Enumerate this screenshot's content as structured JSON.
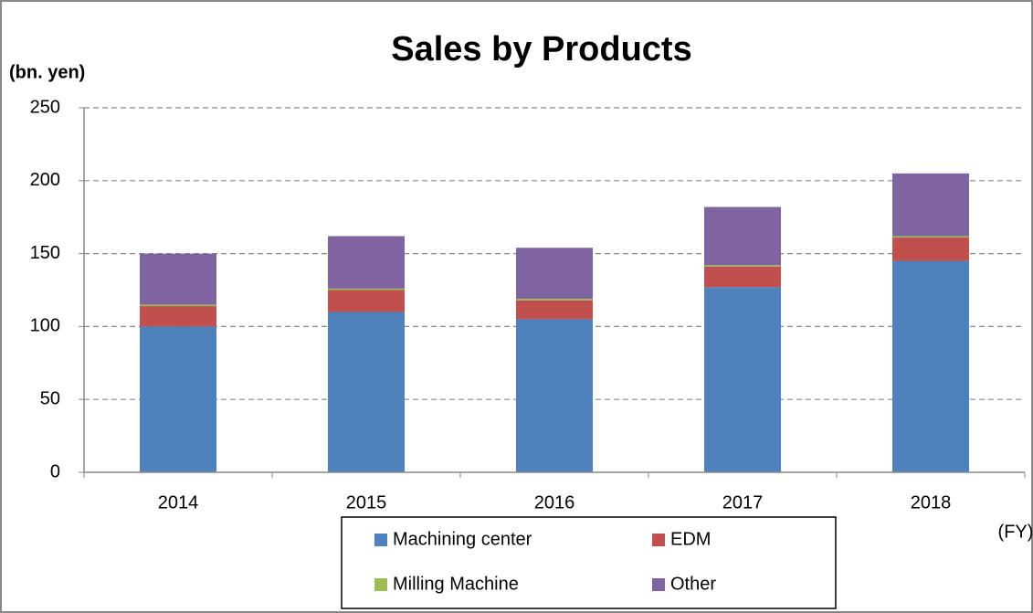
{
  "chart_data": {
    "type": "stacked_bar",
    "title": "Sales by Products",
    "y_label": "(bn. yen)",
    "x_label": "(FY)",
    "categories": [
      "2014",
      "2015",
      "2016",
      "2017",
      "2018"
    ],
    "series": [
      {
        "name": "Machining center",
        "color": "#4f81bd",
        "values": [
          100,
          110,
          105,
          127,
          145
        ]
      },
      {
        "name": "EDM",
        "color": "#c0504d",
        "values": [
          14,
          15,
          13,
          14,
          16
        ]
      },
      {
        "name": "Milling Machine",
        "color": "#9bbb59",
        "values": [
          1,
          1,
          1,
          1,
          1
        ]
      },
      {
        "name": "Other",
        "color": "#8064a2",
        "values": [
          35,
          36,
          35,
          40,
          43
        ]
      }
    ],
    "ylim": [
      0,
      250
    ],
    "yticks": [
      0,
      50,
      100,
      150,
      200,
      250
    ],
    "grid": true
  }
}
